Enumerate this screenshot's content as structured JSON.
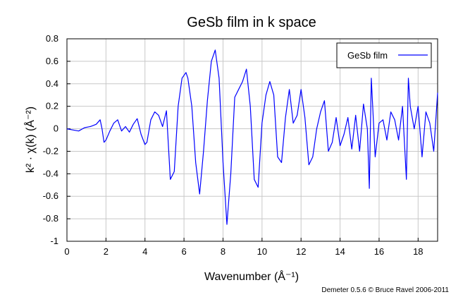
{
  "credit": "Demeter 0.5.6 © Bruce Ravel 2006-2011",
  "chart_data": {
    "type": "line",
    "title": "GeSb film in k space",
    "xlabel": "Wavenumber (Å⁻¹)",
    "ylabel": "k² · χ(k) (Å⁻²)",
    "xlim": [
      0,
      19
    ],
    "ylim": [
      -1,
      0.8
    ],
    "xticks": [
      0,
      2,
      4,
      6,
      8,
      10,
      12,
      14,
      16,
      18
    ],
    "yticks": [
      -1,
      -0.8,
      -0.6,
      -0.4,
      -0.2,
      0,
      0.2,
      0.4,
      0.6,
      0.8
    ],
    "grid": true,
    "legend_position": "top-right",
    "series": [
      {
        "name": "GeSb film",
        "color": "#0000ff",
        "x": [
          0,
          0.3,
          0.6,
          0.9,
          1.2,
          1.5,
          1.7,
          1.8,
          1.9,
          2.0,
          2.2,
          2.4,
          2.6,
          2.8,
          3.0,
          3.2,
          3.4,
          3.6,
          3.8,
          4.0,
          4.1,
          4.3,
          4.5,
          4.7,
          4.9,
          5.1,
          5.3,
          5.5,
          5.7,
          5.9,
          6.1,
          6.2,
          6.4,
          6.6,
          6.8,
          7.0,
          7.2,
          7.4,
          7.6,
          7.8,
          8.0,
          8.2,
          8.4,
          8.6,
          8.8,
          9.0,
          9.2,
          9.4,
          9.6,
          9.8,
          10.0,
          10.2,
          10.4,
          10.6,
          10.8,
          11.0,
          11.2,
          11.4,
          11.6,
          11.8,
          12.0,
          12.2,
          12.4,
          12.6,
          12.8,
          13.0,
          13.2,
          13.4,
          13.6,
          13.8,
          14.0,
          14.2,
          14.4,
          14.6,
          14.8,
          15.0,
          15.2,
          15.4,
          15.5,
          15.6,
          15.8,
          16.0,
          16.2,
          16.4,
          16.6,
          16.8,
          17.0,
          17.2,
          17.4,
          17.5,
          17.6,
          17.8,
          18.0,
          18.2,
          18.4,
          18.6,
          18.8,
          19.0
        ],
        "y": [
          0.0,
          -0.01,
          -0.02,
          0.01,
          0.02,
          0.04,
          0.08,
          0.0,
          -0.12,
          -0.1,
          -0.02,
          0.05,
          0.08,
          -0.02,
          0.02,
          -0.03,
          0.04,
          0.09,
          -0.05,
          -0.14,
          -0.12,
          0.08,
          0.15,
          0.12,
          0.02,
          0.16,
          -0.45,
          -0.38,
          0.2,
          0.45,
          0.5,
          0.45,
          0.2,
          -0.3,
          -0.58,
          -0.2,
          0.25,
          0.6,
          0.7,
          0.45,
          -0.3,
          -0.85,
          -0.4,
          0.28,
          0.35,
          0.42,
          0.53,
          0.2,
          -0.45,
          -0.52,
          0.05,
          0.3,
          0.42,
          0.3,
          -0.25,
          -0.3,
          0.1,
          0.35,
          0.05,
          0.12,
          0.35,
          0.1,
          -0.32,
          -0.25,
          0.0,
          0.15,
          0.25,
          -0.2,
          -0.12,
          0.1,
          -0.15,
          -0.05,
          0.1,
          -0.18,
          0.12,
          -0.2,
          0.22,
          0.0,
          -0.53,
          0.45,
          -0.25,
          0.05,
          0.08,
          -0.1,
          0.15,
          0.08,
          -0.1,
          0.2,
          -0.45,
          0.45,
          0.2,
          0.0,
          0.2,
          -0.25,
          0.15,
          0.05,
          -0.2,
          0.32
        ]
      }
    ]
  }
}
